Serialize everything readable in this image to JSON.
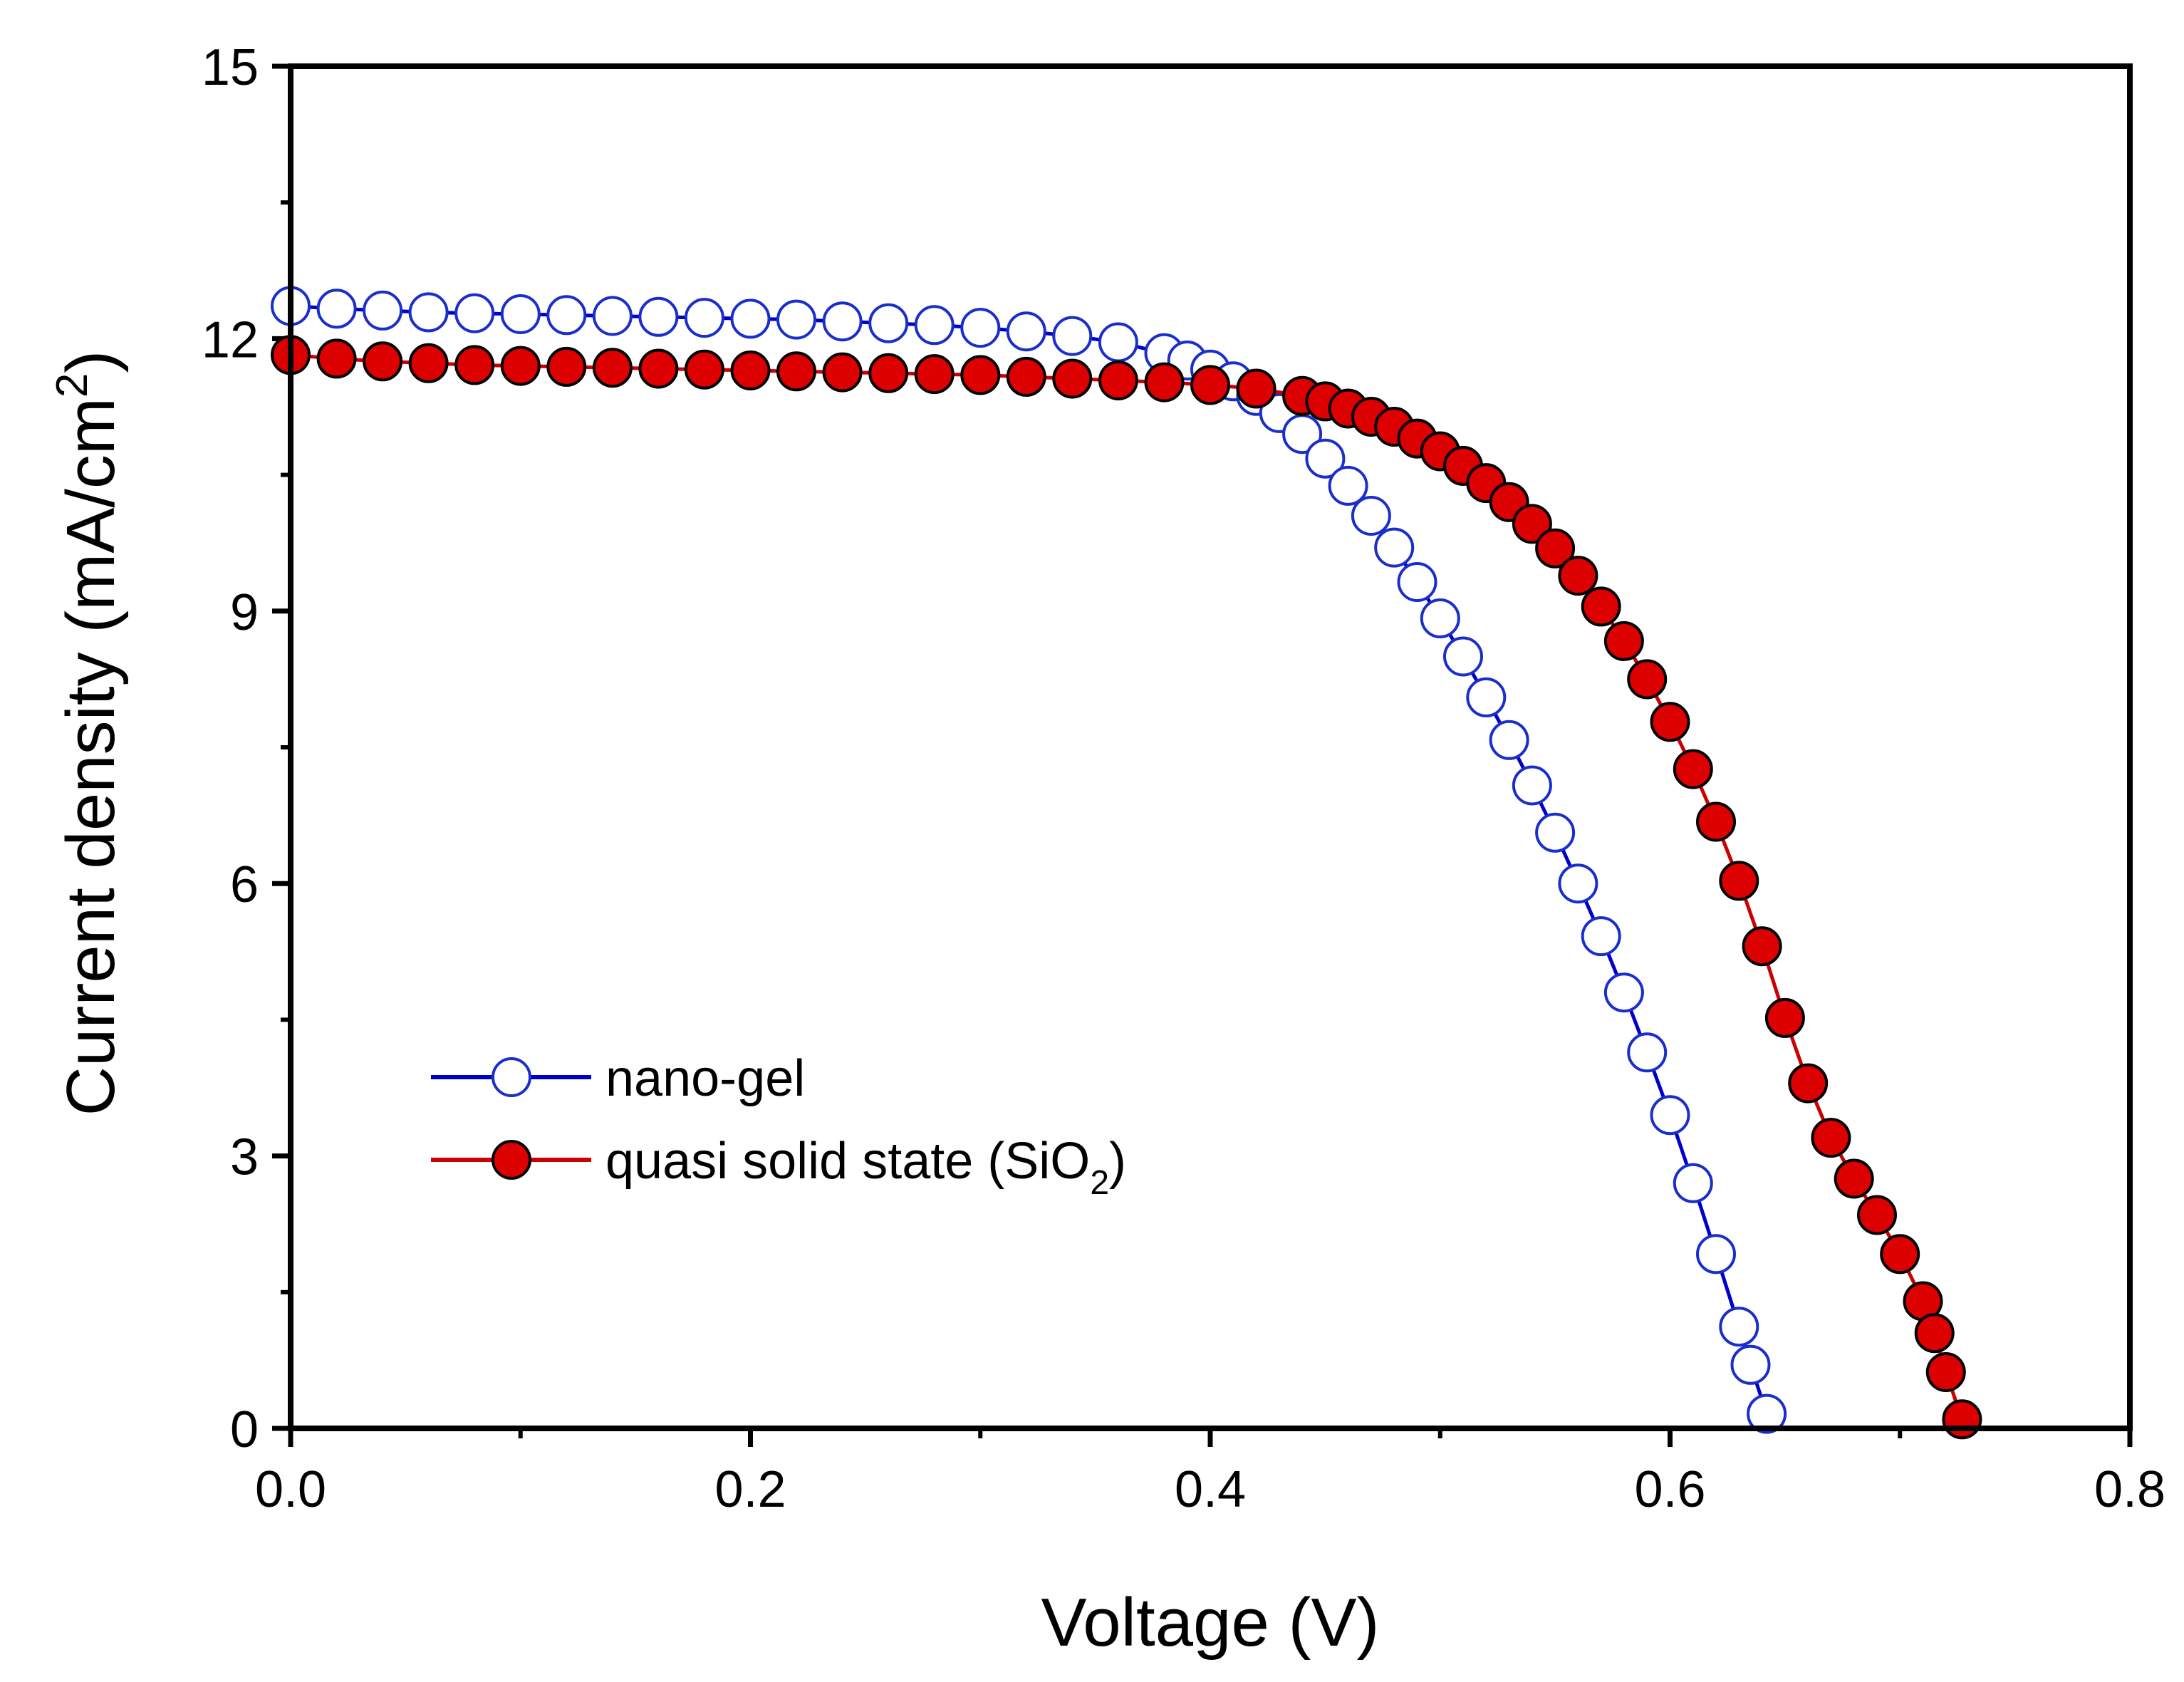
{
  "chart_data": {
    "type": "scatter",
    "title": "",
    "xlabel": "Voltage (V)",
    "ylabel_main": "Current density (mA/cm",
    "ylabel_sup": "2",
    "ylabel_close": ")",
    "xlim": [
      0.0,
      0.8
    ],
    "ylim": [
      0,
      15
    ],
    "x_major_ticks": [
      0.0,
      0.2,
      0.4,
      0.6,
      0.8
    ],
    "x_tick_labels": [
      "0.0",
      "0.2",
      "0.4",
      "0.6",
      "0.8"
    ],
    "y_major_ticks": [
      0,
      3,
      6,
      9,
      12,
      15
    ],
    "y_tick_labels": [
      "0",
      "3",
      "6",
      "9",
      "12",
      "15"
    ],
    "legend_position": "lower-left",
    "series": [
      {
        "name": "nano-gel",
        "legend_label": "nano-gel",
        "line_color": "#0000cc",
        "marker_edge": "#1a2ecc",
        "marker_fill": "#ffffff",
        "marker": "open-circle",
        "points": [
          [
            0.0,
            12.36
          ],
          [
            0.02,
            12.33
          ],
          [
            0.04,
            12.31
          ],
          [
            0.06,
            12.29
          ],
          [
            0.08,
            12.28
          ],
          [
            0.1,
            12.27
          ],
          [
            0.12,
            12.26
          ],
          [
            0.14,
            12.25
          ],
          [
            0.16,
            12.24
          ],
          [
            0.18,
            12.23
          ],
          [
            0.2,
            12.22
          ],
          [
            0.22,
            12.21
          ],
          [
            0.24,
            12.19
          ],
          [
            0.26,
            12.17
          ],
          [
            0.28,
            12.15
          ],
          [
            0.3,
            12.12
          ],
          [
            0.32,
            12.08
          ],
          [
            0.34,
            12.03
          ],
          [
            0.36,
            11.96
          ],
          [
            0.38,
            11.84
          ],
          [
            0.39,
            11.76
          ],
          [
            0.4,
            11.66
          ],
          [
            0.41,
            11.53
          ],
          [
            0.42,
            11.37
          ],
          [
            0.43,
            11.18
          ],
          [
            0.44,
            10.95
          ],
          [
            0.45,
            10.68
          ],
          [
            0.46,
            10.38
          ],
          [
            0.47,
            10.05
          ],
          [
            0.48,
            9.7
          ],
          [
            0.49,
            9.32
          ],
          [
            0.5,
            8.92
          ],
          [
            0.51,
            8.5
          ],
          [
            0.52,
            8.05
          ],
          [
            0.53,
            7.58
          ],
          [
            0.54,
            7.08
          ],
          [
            0.55,
            6.56
          ],
          [
            0.56,
            6.0
          ],
          [
            0.57,
            5.42
          ],
          [
            0.58,
            4.8
          ],
          [
            0.59,
            4.14
          ],
          [
            0.6,
            3.45
          ],
          [
            0.61,
            2.7
          ],
          [
            0.62,
            1.92
          ],
          [
            0.63,
            1.12
          ],
          [
            0.635,
            0.7
          ],
          [
            0.642,
            0.16
          ]
        ]
      },
      {
        "name": "quasi solid state (SiO2)",
        "legend_label_main": "quasi solid state (SiO",
        "legend_label_sub": "2",
        "legend_label_close": ")",
        "line_color": "#cc0000",
        "marker_edge": "#000000",
        "marker_fill": "#dd0000",
        "marker": "filled-circle",
        "points": [
          [
            0.0,
            11.82
          ],
          [
            0.02,
            11.78
          ],
          [
            0.04,
            11.75
          ],
          [
            0.06,
            11.73
          ],
          [
            0.08,
            11.71
          ],
          [
            0.1,
            11.7
          ],
          [
            0.12,
            11.69
          ],
          [
            0.14,
            11.68
          ],
          [
            0.16,
            11.67
          ],
          [
            0.18,
            11.66
          ],
          [
            0.2,
            11.65
          ],
          [
            0.22,
            11.64
          ],
          [
            0.24,
            11.63
          ],
          [
            0.26,
            11.62
          ],
          [
            0.28,
            11.61
          ],
          [
            0.3,
            11.6
          ],
          [
            0.32,
            11.58
          ],
          [
            0.34,
            11.56
          ],
          [
            0.36,
            11.54
          ],
          [
            0.38,
            11.52
          ],
          [
            0.4,
            11.49
          ],
          [
            0.42,
            11.45
          ],
          [
            0.44,
            11.37
          ],
          [
            0.45,
            11.31
          ],
          [
            0.46,
            11.23
          ],
          [
            0.47,
            11.14
          ],
          [
            0.48,
            11.03
          ],
          [
            0.49,
            10.9
          ],
          [
            0.5,
            10.76
          ],
          [
            0.51,
            10.6
          ],
          [
            0.52,
            10.41
          ],
          [
            0.53,
            10.2
          ],
          [
            0.54,
            9.96
          ],
          [
            0.55,
            9.69
          ],
          [
            0.56,
            9.39
          ],
          [
            0.57,
            9.05
          ],
          [
            0.58,
            8.67
          ],
          [
            0.59,
            8.25
          ],
          [
            0.6,
            7.78
          ],
          [
            0.61,
            7.26
          ],
          [
            0.62,
            6.68
          ],
          [
            0.63,
            6.03
          ],
          [
            0.64,
            5.31
          ],
          [
            0.65,
            4.52
          ],
          [
            0.66,
            3.8
          ],
          [
            0.67,
            3.2
          ],
          [
            0.68,
            2.75
          ],
          [
            0.69,
            2.35
          ],
          [
            0.7,
            1.92
          ],
          [
            0.71,
            1.4
          ],
          [
            0.715,
            1.05
          ],
          [
            0.72,
            0.62
          ],
          [
            0.727,
            0.1
          ]
        ]
      }
    ]
  }
}
